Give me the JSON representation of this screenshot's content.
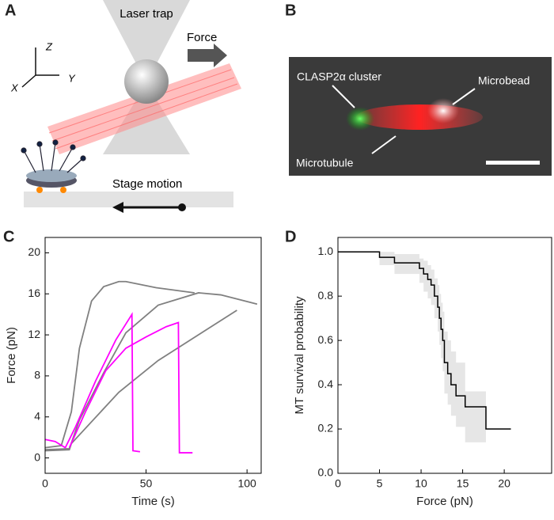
{
  "panel_labels": [
    "A",
    "B",
    "C",
    "D"
  ],
  "schematic": {
    "trap": "Laser trap",
    "force": "Force",
    "stage": "Stage motion",
    "axes": [
      "Z",
      "X",
      "Y"
    ]
  },
  "micrograph": {
    "cluster": "CLASP2α cluster",
    "bead": "Microbead",
    "microtubule": "Microtubule"
  },
  "chart_data": [
    {
      "type": "line",
      "x_label": "Time (s)",
      "y_label": "Force (pN)",
      "xlim": [
        0,
        107
      ],
      "ylim": [
        -1.5,
        21.5
      ],
      "xticks": [
        0,
        50,
        100
      ],
      "yticks": [
        0,
        4,
        8,
        12,
        16,
        20
      ],
      "series": [
        {
          "color": "#808080",
          "x": [
            0,
            8,
            13,
            17,
            23,
            29,
            36.5,
            40,
            55,
            74
          ],
          "values": [
            1,
            1.2,
            4.5,
            10.7,
            15.3,
            16.7,
            17.2,
            17.2,
            16.6,
            16.1
          ]
        },
        {
          "color": "#808080",
          "x": [
            0,
            12,
            17,
            29,
            40,
            56,
            76,
            87,
            105
          ],
          "values": [
            0.8,
            0.9,
            3.7,
            8.3,
            12.2,
            14.9,
            16.1,
            15.9,
            15
          ]
        },
        {
          "color": "#808080",
          "x": [
            0,
            12,
            13,
            36.5,
            56,
            95
          ],
          "values": [
            0.7,
            0.8,
            1.4,
            6.4,
            9.5,
            14.4
          ]
        },
        {
          "color": "#ff00ff",
          "x": [
            0,
            5,
            10,
            15,
            25,
            35,
            43,
            43.5,
            47
          ],
          "values": [
            1.8,
            1.6,
            1,
            3,
            7.5,
            11.5,
            14,
            0.7,
            0.6
          ]
        },
        {
          "color": "#ff00ff",
          "x": [
            12,
            20,
            30,
            40,
            50,
            60,
            66,
            66.5,
            73
          ],
          "values": [
            1,
            4.5,
            8.5,
            10.7,
            11.8,
            12.8,
            13.2,
            0.5,
            0.5
          ]
        }
      ]
    },
    {
      "type": "step",
      "x_label": "Force (pN)",
      "y_label": "MT survival probability",
      "color": "#000000",
      "band_color": "#e6e6e6",
      "xlim": [
        0,
        25.7
      ],
      "ylim": [
        0,
        1.065
      ],
      "xticks": [
        0,
        5,
        10,
        15,
        20
      ],
      "yticks": [
        {
          "value": 0,
          "label": "0.0"
        },
        0.2,
        0.4,
        0.6,
        0.8,
        {
          "value": 1,
          "label": "1.0"
        }
      ],
      "x": [
        0,
        5,
        6.8,
        9.8,
        10.3,
        10.8,
        11.2,
        11.6,
        12,
        12.2,
        12.4,
        12.6,
        12.8,
        13.2,
        13.6,
        14.2,
        15.3,
        17.8,
        20.8
      ],
      "values": [
        1,
        0.975,
        0.95,
        0.925,
        0.9,
        0.875,
        0.85,
        0.8,
        0.75,
        0.7,
        0.65,
        0.6,
        0.5,
        0.45,
        0.4,
        0.35,
        0.3,
        0.2,
        0.2
      ],
      "band_upper": [
        1,
        1,
        0.99,
        0.97,
        0.96,
        0.94,
        0.92,
        0.88,
        0.85,
        0.81,
        0.77,
        0.73,
        0.64,
        0.6,
        0.55,
        0.5,
        0.37,
        null,
        null
      ],
      "band_lower": [
        1,
        0.94,
        0.9,
        0.86,
        0.82,
        0.79,
        0.76,
        0.7,
        0.64,
        0.58,
        0.52,
        0.46,
        0.36,
        0.31,
        0.26,
        0.21,
        0.14,
        null,
        null
      ]
    }
  ]
}
